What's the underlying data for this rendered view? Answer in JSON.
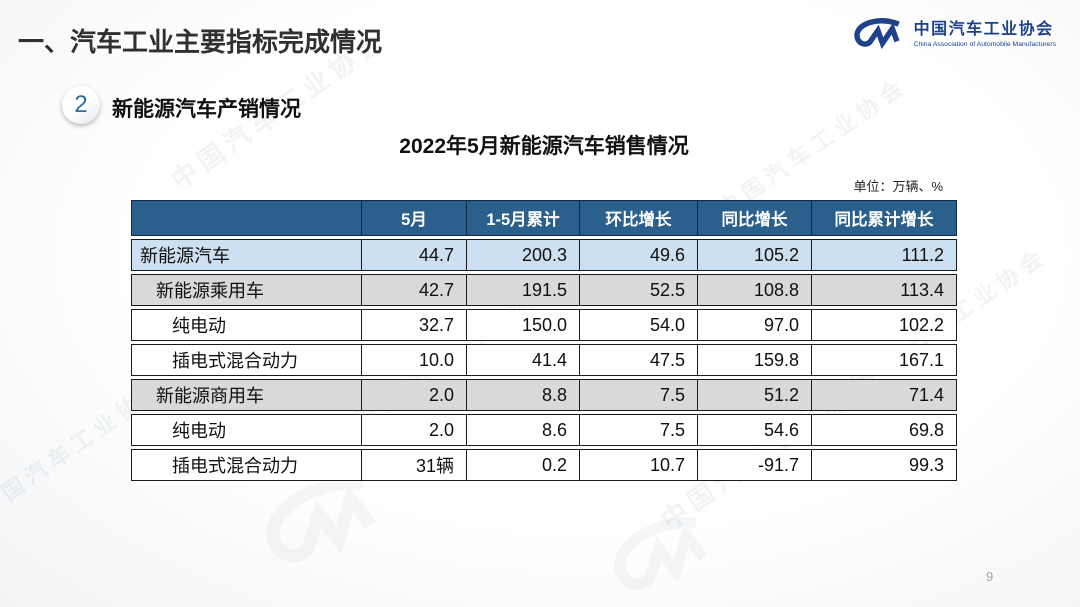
{
  "slide": {
    "main_title": "一、汽车工业主要指标完成情况",
    "section_number": "2",
    "section_title": "新能源汽车产销情况",
    "table_title": "2022年5月新能源汽车销售情况",
    "unit_note": "单位：万辆、%",
    "page_number": "9"
  },
  "logo": {
    "name_cn": "中国汽车工业协会",
    "name_en": "China Association of Automobile Manufacturers"
  },
  "colors": {
    "header_bg": "#2b5f8c",
    "highlight_row_bg": "#cde0f2",
    "gray_row_bg": "#d9d9d9",
    "logo_navy": "#1e418c",
    "badge_number_blue": "#2e6da0"
  },
  "watermark": {
    "text": "中国汽车工业协会"
  },
  "chart_data": {
    "type": "table",
    "title": "2022年5月新能源汽车销售情况",
    "unit": "万辆、%",
    "columns": [
      "",
      "5月",
      "1-5月累计",
      "环比增长",
      "同比增长",
      "同比累计增长"
    ],
    "rows": [
      {
        "label": "新能源汽车",
        "indent": 0,
        "style": "blue",
        "values": [
          "44.7",
          "200.3",
          "49.6",
          "105.2",
          "111.2"
        ]
      },
      {
        "label": "新能源乘用车",
        "indent": 1,
        "style": "gray",
        "values": [
          "42.7",
          "191.5",
          "52.5",
          "108.8",
          "113.4"
        ]
      },
      {
        "label": "纯电动",
        "indent": 2,
        "style": "white",
        "values": [
          "32.7",
          "150.0",
          "54.0",
          "97.0",
          "102.2"
        ]
      },
      {
        "label": "插电式混合动力",
        "indent": 2,
        "style": "white",
        "values": [
          "10.0",
          "41.4",
          "47.5",
          "159.8",
          "167.1"
        ]
      },
      {
        "label": "新能源商用车",
        "indent": 1,
        "style": "gray",
        "values": [
          "2.0",
          "8.8",
          "7.5",
          "51.2",
          "71.4"
        ]
      },
      {
        "label": "纯电动",
        "indent": 2,
        "style": "white",
        "values": [
          "2.0",
          "8.6",
          "7.5",
          "54.6",
          "69.8"
        ]
      },
      {
        "label": "插电式混合动力",
        "indent": 2,
        "style": "white",
        "values": [
          "31辆",
          "0.2",
          "10.7",
          "-91.7",
          "99.3"
        ]
      }
    ]
  }
}
